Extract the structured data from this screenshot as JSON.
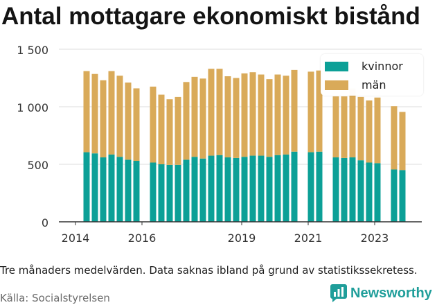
{
  "chart_data": {
    "type": "bar",
    "stacked": true,
    "title": "Antal mottagare ekonomiskt bistånd",
    "x": [
      "2014-05",
      "2014-08",
      "2014-11",
      "2015-02",
      "2015-05",
      "2015-08",
      "2015-11",
      "2016-05",
      "2016-08",
      "2016-11",
      "2017-02",
      "2017-05",
      "2017-08",
      "2017-11",
      "2018-02",
      "2018-05",
      "2018-08",
      "2018-11",
      "2019-02",
      "2019-05",
      "2019-08",
      "2019-11",
      "2020-02",
      "2020-05",
      "2020-08",
      "2021-02",
      "2021-05",
      "2021-11",
      "2022-02",
      "2022-05",
      "2022-08",
      "2022-11",
      "2023-02",
      "2023-08",
      "2023-11"
    ],
    "series": [
      {
        "name": "kvinnor",
        "color": "#0ca097",
        "values": [
          605,
          595,
          560,
          585,
          565,
          540,
          530,
          515,
          500,
          495,
          495,
          540,
          565,
          550,
          575,
          580,
          560,
          555,
          565,
          575,
          575,
          565,
          580,
          585,
          610,
          605,
          610,
          560,
          555,
          560,
          535,
          515,
          510,
          455,
          450
        ]
      },
      {
        "name": "män",
        "color": "#d9aa59",
        "values": [
          705,
          690,
          670,
          725,
          705,
          670,
          630,
          660,
          605,
          570,
          590,
          675,
          695,
          695,
          755,
          750,
          705,
          695,
          725,
          725,
          705,
          675,
          700,
          685,
          710,
          700,
          705,
          530,
          535,
          600,
          550,
          540,
          570,
          550,
          505
        ]
      }
    ],
    "ylim": [
      0,
      1500
    ],
    "yticks": [
      0,
      500,
      1000,
      1500
    ],
    "ytick_labels": [
      "0",
      "500",
      "1 000",
      "1 500"
    ],
    "xlim": [
      "2013-07",
      "2024-06"
    ],
    "xticks": [
      "2014",
      "2016",
      "2019",
      "2021",
      "2023"
    ],
    "grid": "horizontal",
    "legend_position": "top-right"
  },
  "footnote": "Tre månaders medelvärden. Data saknas ibland på grund av statistikssekretess.",
  "source": "Källa: Socialstyrelsen",
  "logo": {
    "text": "Newsworthy",
    "icon": "newsworthy-chart-bubble-icon",
    "color": "#1f9e9a"
  }
}
